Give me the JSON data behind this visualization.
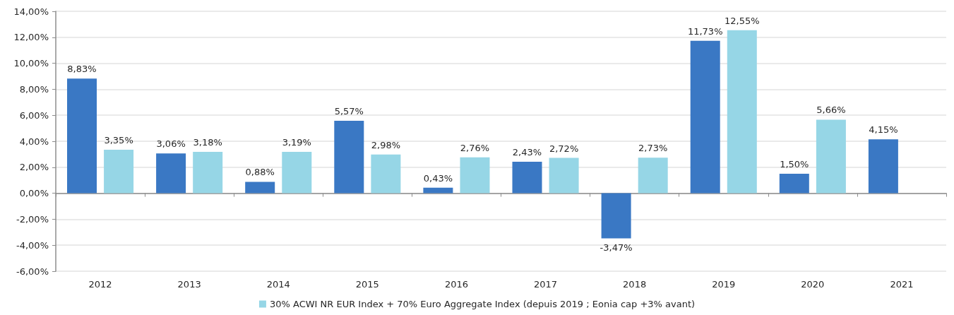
{
  "chart_data": {
    "type": "bar",
    "categories": [
      "2012",
      "2013",
      "2014",
      "2015",
      "2016",
      "2017",
      "2018",
      "2019",
      "2020",
      "2021"
    ],
    "series": [
      {
        "color": "#3a78c4",
        "values": [
          8.83,
          3.06,
          0.88,
          5.57,
          0.43,
          2.43,
          -3.47,
          11.73,
          1.5,
          4.15
        ],
        "value_labels": [
          "8,83%",
          "3,06%",
          "0,88%",
          "5,57%",
          "0,43%",
          "2,43%",
          "-3,47%",
          "11,73%",
          "1,50%",
          "4,15%"
        ]
      },
      {
        "name": "30% ACWI NR EUR Index + 70% Euro Aggregate Index (depuis 2019 ; Eonia cap +3% avant)",
        "color": "#96d6e6",
        "values": [
          3.35,
          3.18,
          3.19,
          2.98,
          2.76,
          2.72,
          2.73,
          12.55,
          5.66,
          null
        ],
        "value_labels": [
          "3,35%",
          "3,18%",
          "3,19%",
          "2,98%",
          "2,76%",
          "2,72%",
          "2,73%",
          "12,55%",
          "5,66%",
          null
        ]
      }
    ],
    "ylim": [
      -6,
      14
    ],
    "yticks": [
      {
        "value": -6,
        "label": "-6,00%"
      },
      {
        "value": -4,
        "label": "-4,00%"
      },
      {
        "value": -2,
        "label": "-2,00%"
      },
      {
        "value": 0,
        "label": "0,00%"
      },
      {
        "value": 2,
        "label": "2,00%"
      },
      {
        "value": 4,
        "label": "4,00%"
      },
      {
        "value": 6,
        "label": "6,00%"
      },
      {
        "value": 8,
        "label": "8,00%"
      },
      {
        "value": 10,
        "label": "10,00%"
      },
      {
        "value": 12,
        "label": "12,00%"
      },
      {
        "value": 14,
        "label": "14,00%"
      }
    ],
    "grid": "y",
    "legend": "bottom"
  }
}
